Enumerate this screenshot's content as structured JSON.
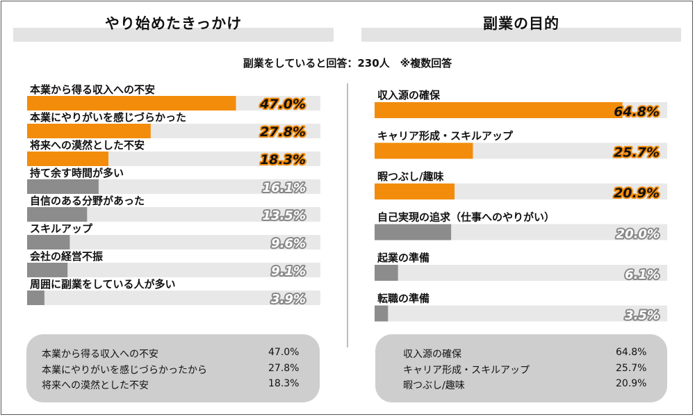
{
  "subtitle": "副業をしていると回答：230人　※複数回答",
  "colors": {
    "highlight": "#f28c0a",
    "muted": "#8c8c8c",
    "track": "#e8e8e8",
    "summary_bg": "#cecece"
  },
  "chart_data": [
    {
      "type": "bar",
      "title": "やり始めたきっかけ",
      "categories": [
        "本業から得る収入への不安",
        "本業にやりがいを感じづらかった",
        "将来への漠然とした不安",
        "持て余す時間が多い",
        "自信のある分野があった",
        "スキルアップ",
        "会社の経営不振",
        "周囲に副業をしている人が多い"
      ],
      "values": [
        47.0,
        27.8,
        18.3,
        16.1,
        13.5,
        9.6,
        9.1,
        3.9
      ],
      "value_labels": [
        "47.0%",
        "27.8%",
        "18.3%",
        "16.1%",
        "13.5%",
        "9.6%",
        "9.1%",
        "3.9%"
      ],
      "highlight": [
        true,
        true,
        true,
        false,
        false,
        false,
        false,
        false
      ],
      "xlim": [
        0,
        66
      ]
    },
    {
      "type": "bar",
      "title": "副業の目的",
      "categories": [
        "収入源の確保",
        "キャリア形成・スキルアップ",
        "暇つぶし/趣味",
        "自己実現の追求（仕事へのやりがい）",
        "起業の準備",
        "転職の準備"
      ],
      "values": [
        64.8,
        25.7,
        20.9,
        20.0,
        6.1,
        3.5
      ],
      "value_labels": [
        "64.8%",
        "25.7%",
        "20.9%",
        "20.0%",
        "6.1%",
        "3.5%"
      ],
      "highlight": [
        true,
        true,
        true,
        false,
        false,
        false
      ],
      "xlim": [
        0,
        76.5
      ]
    }
  ],
  "summaries": [
    {
      "items": [
        {
          "label": "本業から得る収入への不安",
          "value": "47.0%"
        },
        {
          "label": "本業にやりがいを感じづらかったから",
          "value": "27.8%"
        },
        {
          "label": "将来への漠然とした不安",
          "value": "18.3%"
        }
      ]
    },
    {
      "items": [
        {
          "label": "収入源の確保",
          "value": "64.8%"
        },
        {
          "label": "キャリア形成・スキルアップ",
          "value": "25.7%"
        },
        {
          "label": "暇つぶし/趣味",
          "value": "20.9%"
        }
      ]
    }
  ]
}
